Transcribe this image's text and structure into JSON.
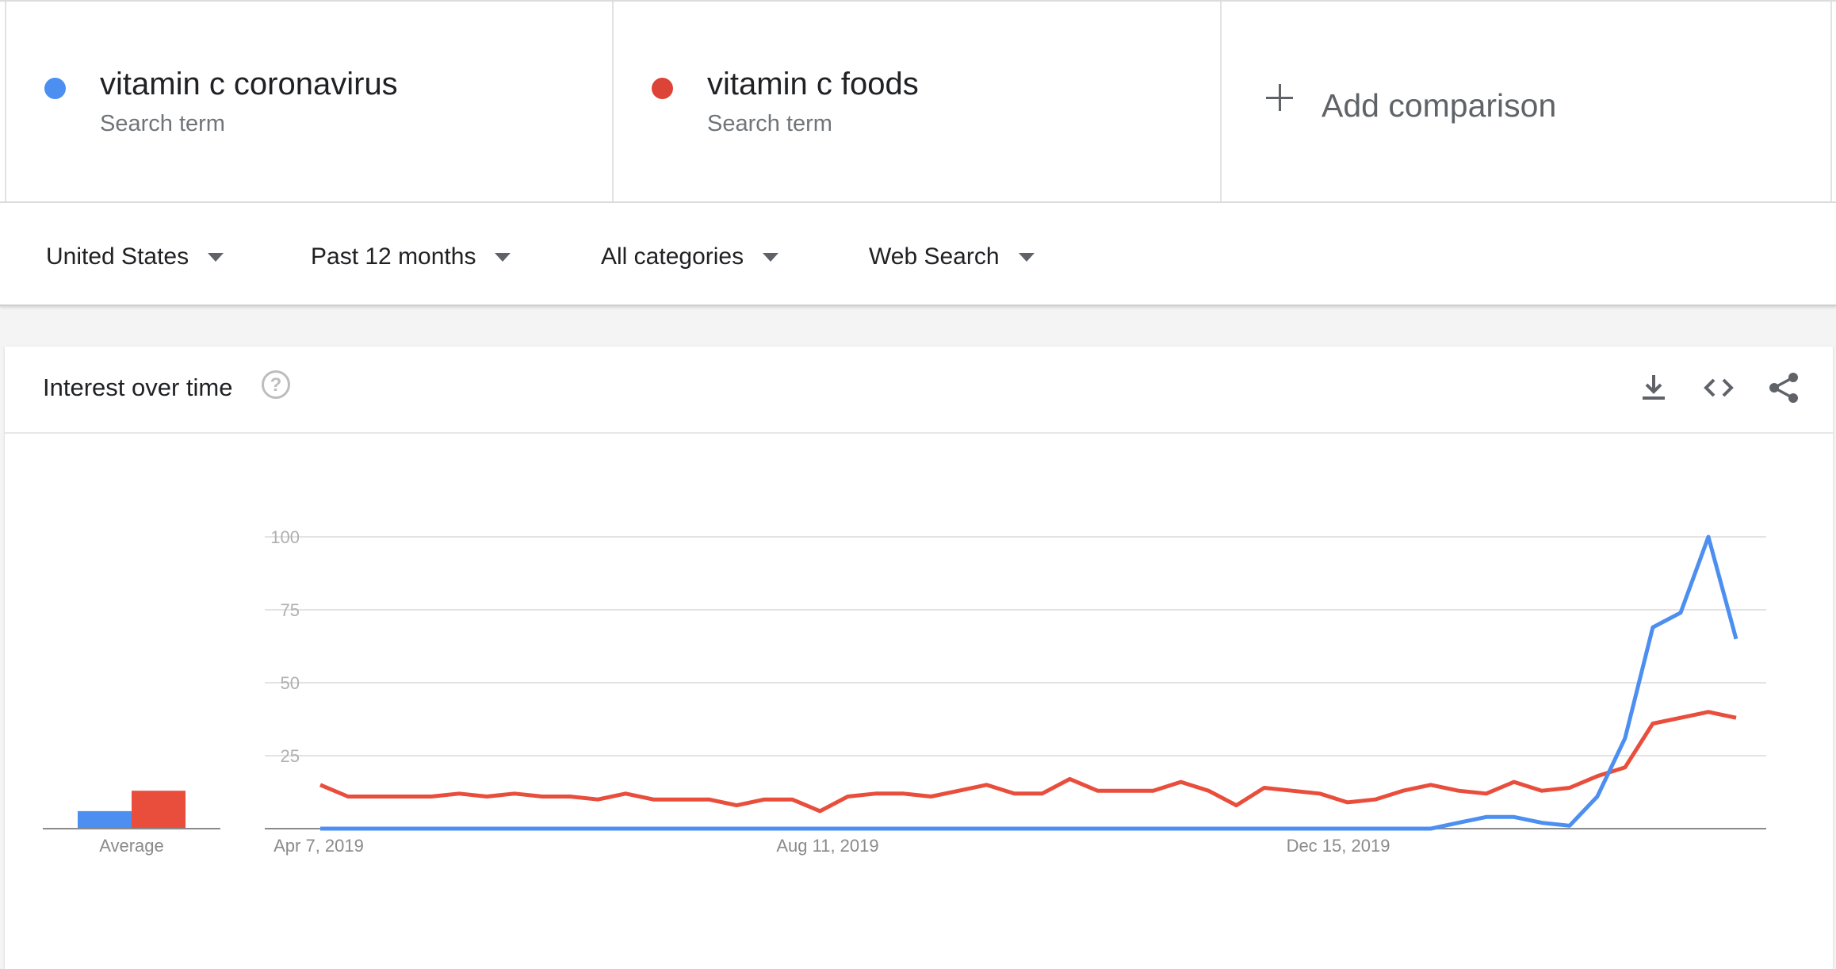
{
  "terms": [
    {
      "name": "vitamin c coronavirus",
      "sub": "Search term",
      "color": "#4c8ff0"
    },
    {
      "name": "vitamin c foods",
      "sub": "Search term",
      "color": "#db4437"
    }
  ],
  "add_comparison": "Add comparison",
  "filters": {
    "region": "United States",
    "time": "Past 12 months",
    "category": "All categories",
    "property": "Web Search"
  },
  "card": {
    "title": "Interest over time",
    "icons": [
      "help-icon",
      "download-icon",
      "embed-code-icon",
      "share-icon"
    ]
  },
  "chart_data": {
    "type": "line",
    "x_tick_labels": [
      "Apr 7, 2019",
      "Aug 11, 2019",
      "Dec 15, 2019"
    ],
    "y_ticks": [
      25,
      50,
      75,
      100
    ],
    "ylim": [
      0,
      100
    ],
    "grid": true,
    "average_label": "Average",
    "averages": [
      {
        "series": "vitamin c coronavirus",
        "value": 6,
        "color": "#4c8ff0"
      },
      {
        "series": "vitamin c foods",
        "value": 13,
        "color": "#e94e3c"
      }
    ],
    "series": [
      {
        "name": "vitamin c foods",
        "color": "#e94e3c",
        "values": [
          15,
          11,
          11,
          11,
          11,
          12,
          11,
          12,
          11,
          11,
          10,
          12,
          10,
          10,
          10,
          8,
          10,
          10,
          6,
          11,
          12,
          12,
          11,
          13,
          15,
          12,
          12,
          17,
          13,
          13,
          13,
          16,
          13,
          8,
          14,
          13,
          12,
          9,
          10,
          13,
          15,
          13,
          12,
          16,
          13,
          14,
          18,
          21,
          36,
          38,
          40,
          38
        ]
      },
      {
        "name": "vitamin c coronavirus",
        "color": "#4c8ff0",
        "values": [
          0,
          0,
          0,
          0,
          0,
          0,
          0,
          0,
          0,
          0,
          0,
          0,
          0,
          0,
          0,
          0,
          0,
          0,
          0,
          0,
          0,
          0,
          0,
          0,
          0,
          0,
          0,
          0,
          0,
          0,
          0,
          0,
          0,
          0,
          0,
          0,
          0,
          0,
          0,
          0,
          0,
          2,
          4,
          4,
          2,
          1,
          11,
          31,
          69,
          74,
          100,
          65
        ]
      }
    ]
  }
}
